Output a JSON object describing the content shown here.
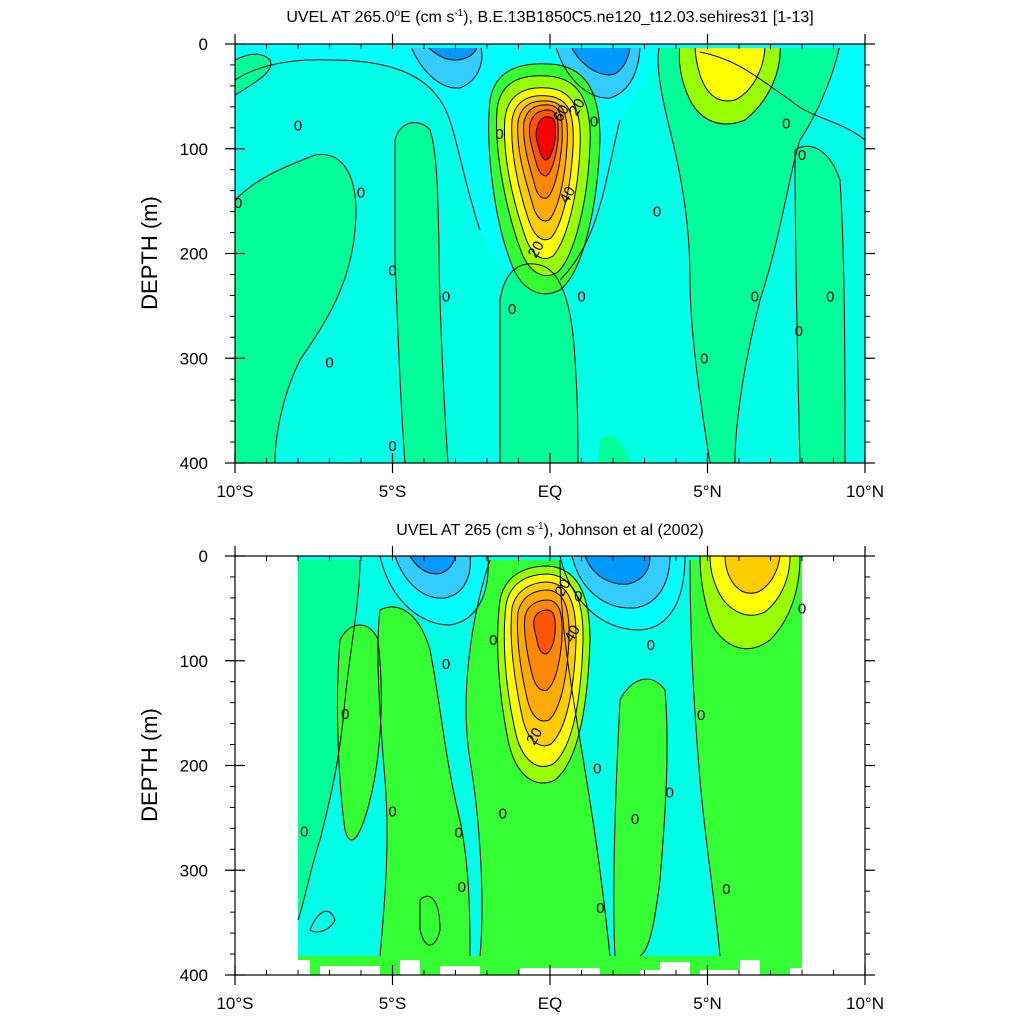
{
  "chart_data": [
    {
      "type": "heatmap",
      "title": "UVEL AT 265.0°E (cm s-1), B.E.13B1850C5.ne120_t12.03.sehires31 [1-13]",
      "title_parts": [
        "UVEL AT 265.0",
        "o",
        "E (cm s",
        "-1",
        "), B.E.13B1850C5.ne120_t12.03.sehires31 [1-13]"
      ],
      "xlabel": "",
      "ylabel": "DEPTH (m)",
      "xlim": [
        -10,
        10
      ],
      "ylim": [
        400,
        0
      ],
      "x_ticks": [
        -10,
        -5,
        0,
        5,
        10
      ],
      "y_ticks": [
        0,
        100,
        200,
        300,
        400
      ],
      "x_tick_labels": [
        "10°S",
        "5°S",
        "EQ",
        "5°N",
        "10°N"
      ],
      "y_tick_labels": [
        "0",
        "100",
        "200",
        "300",
        "400"
      ],
      "contour_interval": 10,
      "contour_labels": [
        {
          "text": "0",
          "x": -8.0,
          "y": 78
        },
        {
          "text": "0",
          "x": -9.9,
          "y": 152
        },
        {
          "text": "0",
          "x": -6.0,
          "y": 142
        },
        {
          "text": "0",
          "x": -5.0,
          "y": 216
        },
        {
          "text": "0",
          "x": -3.3,
          "y": 241
        },
        {
          "text": "0",
          "x": -7.0,
          "y": 304
        },
        {
          "text": "0",
          "x": -5.0,
          "y": 384
        },
        {
          "text": "0",
          "x": -1.6,
          "y": 86
        },
        {
          "text": "0",
          "x": -1.2,
          "y": 253
        },
        {
          "text": "0",
          "x": 1.0,
          "y": 241
        },
        {
          "text": "0",
          "x": 1.4,
          "y": 74
        },
        {
          "text": "20",
          "x": 0.85,
          "y": 60
        },
        {
          "text": "60",
          "x": 0.35,
          "y": 66
        },
        {
          "text": "40",
          "x": 0.55,
          "y": 144
        },
        {
          "text": "20",
          "x": -0.45,
          "y": 196
        },
        {
          "text": "0",
          "x": 3.4,
          "y": 160
        },
        {
          "text": "0",
          "x": 4.9,
          "y": 300
        },
        {
          "text": "0",
          "x": 6.5,
          "y": 241
        },
        {
          "text": "0",
          "x": 7.5,
          "y": 76
        },
        {
          "text": "0",
          "x": 8.0,
          "y": 106
        },
        {
          "text": "0",
          "x": 7.9,
          "y": 274
        },
        {
          "text": "0",
          "x": 8.9,
          "y": 241
        }
      ]
    },
    {
      "type": "heatmap",
      "title": "UVEL AT 265 (cm s-1), Johnson et al (2002)",
      "title_parts": [
        "UVEL AT 265 (cm s",
        "-1",
        "), Johnson et al (2002)"
      ],
      "xlabel": "",
      "ylabel": "DEPTH (m)",
      "xlim": [
        -10,
        10
      ],
      "ylim": [
        400,
        0
      ],
      "x_ticks": [
        -10,
        -5,
        0,
        5,
        10
      ],
      "y_ticks": [
        0,
        100,
        200,
        300,
        400
      ],
      "x_tick_labels": [
        "10°S",
        "5°S",
        "EQ",
        "5°N",
        "10°N"
      ],
      "y_tick_labels": [
        "0",
        "100",
        "200",
        "300",
        "400"
      ],
      "contour_interval": 10,
      "data_extent_x": [
        -8,
        8
      ],
      "contour_labels": [
        {
          "text": "20",
          "x": 0.4,
          "y": 30
        },
        {
          "text": "0",
          "x": 0.9,
          "y": 38
        },
        {
          "text": "0",
          "x": -1.8,
          "y": 80
        },
        {
          "text": "40",
          "x": 0.7,
          "y": 74
        },
        {
          "text": "0",
          "x": -3.3,
          "y": 103
        },
        {
          "text": "0",
          "x": -6.5,
          "y": 151
        },
        {
          "text": "20",
          "x": -0.5,
          "y": 172
        },
        {
          "text": "0",
          "x": 1.5,
          "y": 203
        },
        {
          "text": "0",
          "x": 3.2,
          "y": 85
        },
        {
          "text": "0",
          "x": 4.8,
          "y": 152
        },
        {
          "text": "0",
          "x": 3.8,
          "y": 226
        },
        {
          "text": "0",
          "x": 2.7,
          "y": 251
        },
        {
          "text": "0",
          "x": -5.0,
          "y": 244
        },
        {
          "text": "0",
          "x": -1.5,
          "y": 246
        },
        {
          "text": "0",
          "x": -2.9,
          "y": 264
        },
        {
          "text": "0",
          "x": -7.8,
          "y": 263
        },
        {
          "text": "0",
          "x": -2.8,
          "y": 316
        },
        {
          "text": "0",
          "x": 1.6,
          "y": 336
        },
        {
          "text": "0",
          "x": 5.6,
          "y": 318
        },
        {
          "text": "0",
          "x": 8.0,
          "y": 50
        }
      ]
    }
  ],
  "colors": {
    "cyan_bg": "#00ffe6",
    "aqua": "#00ffff",
    "light_green": "#00ff99",
    "green": "#33ff33",
    "lime": "#99ff00",
    "yellow": "#ffff00",
    "gold": "#ffcc00",
    "orange": "#ffaa00",
    "dark_orange": "#ff8800",
    "red_orange": "#ff5500",
    "red": "#ff0000",
    "light_blue": "#33ccff",
    "blue": "#0099ff"
  }
}
